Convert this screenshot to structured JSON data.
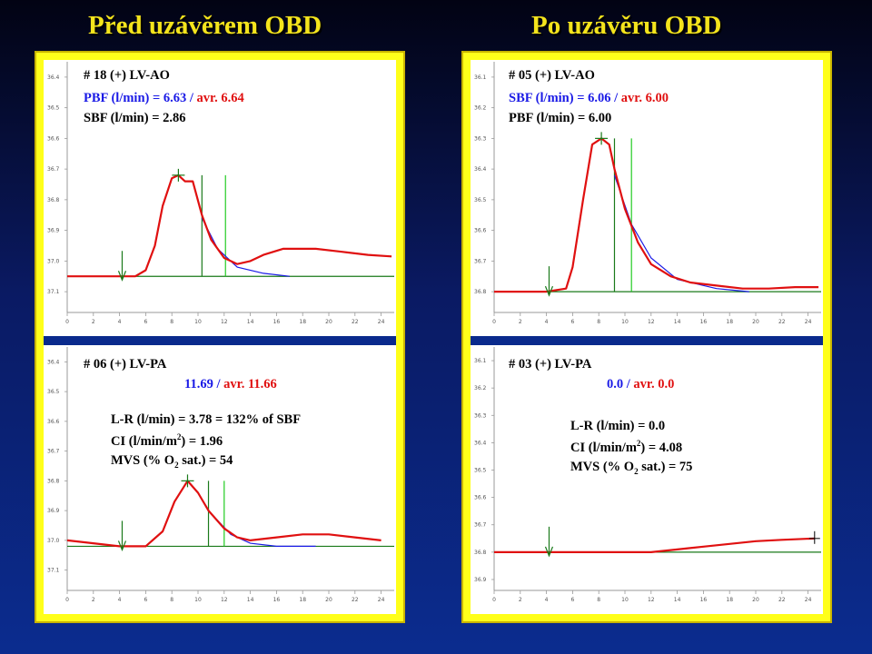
{
  "titles": {
    "left": "Před uzávěrem OBD",
    "right": "Po uzávěru OBD"
  },
  "colors": {
    "background": "#0b2c8f",
    "frame": "#ffff1a",
    "curve": "#e01010",
    "fit": "#1a1ae6",
    "baseline": "#1a7a1a",
    "marker": "#22cc22"
  },
  "panels": {
    "tl": {
      "header": "# 18  (+)  LV-AO",
      "line2_label": "PBF (l/min)   =  6.63 / ",
      "line2_avr": "avr. 6.64",
      "line3": "SBF (l/min)  =  2.86"
    },
    "bl": {
      "header": "# 06  (+)  LV-PA",
      "line2_value": "11.69 / ",
      "line2_avr": "avr. 11.66",
      "lr": "L-R (l/min)  = 3.78 = 132% of  SBF",
      "ci_a": "CI (l/min/m",
      "ci_sup": "2",
      "ci_b": ")  = 1.96",
      "mvs_a": "MVS (% O",
      "mvs_sub": "2",
      "mvs_b": " sat.)  = 54"
    },
    "tr": {
      "header": "# 05  (+)  LV-AO",
      "line2_label": "SBF (l/min)   =  6.06 / ",
      "line2_avr": "avr. 6.00",
      "line3": "PBF (l/min)    =  6.00"
    },
    "br": {
      "header": "# 03  (+)  LV-PA",
      "line2_value": "0.0 / ",
      "line2_avr": "avr. 0.0",
      "lr": "L-R (l/min)  = 0.0",
      "ci_a": "CI (l/min/m",
      "ci_sup": "2",
      "ci_b": ")  = 4.08",
      "mvs_a": "MVS (% O",
      "mvs_sub": "2",
      "mvs_b": " sat.)  = 75"
    }
  },
  "chart_data": [
    {
      "id": "tl",
      "type": "line",
      "x_ticks": [
        0,
        2,
        4,
        6,
        8,
        10,
        12,
        14,
        16,
        18,
        20,
        22,
        24
      ],
      "y_ticks": [
        "36.4",
        "36.5",
        "36.6",
        "36.7",
        "36.8",
        "36.9",
        "37.0",
        "37.1"
      ],
      "xlim": [
        0,
        25
      ],
      "ylim": [
        36.35,
        37.15
      ],
      "injection_x": 4.2,
      "peak": [
        8.5,
        36.72
      ],
      "markers_x": [
        10.3,
        12.1
      ],
      "baseline_y": 37.05,
      "series": [
        {
          "values": [
            [
              0,
              37.05
            ],
            [
              3,
              37.05
            ],
            [
              5.2,
              37.05
            ],
            [
              6,
              37.03
            ],
            [
              6.7,
              36.95
            ],
            [
              7.3,
              36.82
            ],
            [
              8,
              36.73
            ],
            [
              8.5,
              36.72
            ],
            [
              9,
              36.74
            ],
            [
              9.6,
              36.74
            ],
            [
              10.3,
              36.85
            ],
            [
              11,
              36.93
            ],
            [
              12,
              36.99
            ],
            [
              13,
              37.01
            ],
            [
              14,
              37.0
            ],
            [
              15,
              36.98
            ],
            [
              16.5,
              36.96
            ],
            [
              18,
              36.96
            ],
            [
              19,
              36.96
            ],
            [
              21,
              36.97
            ],
            [
              23,
              36.98
            ],
            [
              24.8,
              36.985
            ]
          ]
        },
        {
          "values": [
            [
              10.3,
              36.86
            ],
            [
              11.5,
              36.96
            ],
            [
              13,
              37.02
            ],
            [
              15,
              37.04
            ],
            [
              17,
              37.05
            ]
          ]
        }
      ]
    },
    {
      "id": "bl",
      "type": "line",
      "x_ticks": [
        0,
        2,
        4,
        6,
        8,
        10,
        12,
        14,
        16,
        18,
        20,
        22,
        24
      ],
      "y_ticks": [
        "36.4",
        "36.5",
        "36.6",
        "36.7",
        "36.8",
        "36.9",
        "37.0",
        "37.1"
      ],
      "xlim": [
        0,
        25
      ],
      "ylim": [
        36.35,
        37.15
      ],
      "injection_x": 4.2,
      "peak": [
        9.2,
        36.8
      ],
      "markers_x": [
        10.8,
        12.0
      ],
      "baseline_y": 37.02,
      "series": [
        {
          "values": [
            [
              0,
              37.0
            ],
            [
              2,
              37.01
            ],
            [
              4,
              37.02
            ],
            [
              6,
              37.02
            ],
            [
              7.3,
              36.97
            ],
            [
              8.2,
              36.87
            ],
            [
              9.2,
              36.8
            ],
            [
              10,
              36.84
            ],
            [
              10.8,
              36.9
            ],
            [
              12,
              36.96
            ],
            [
              13,
              36.99
            ],
            [
              14,
              37.0
            ],
            [
              16,
              36.99
            ],
            [
              18,
              36.98
            ],
            [
              20,
              36.98
            ],
            [
              22,
              36.99
            ],
            [
              24,
              37.0
            ]
          ]
        },
        {
          "values": [
            [
              10.8,
              36.9
            ],
            [
              12.5,
              36.98
            ],
            [
              14,
              37.01
            ],
            [
              16,
              37.02
            ],
            [
              19,
              37.02
            ]
          ]
        }
      ]
    },
    {
      "id": "tr",
      "type": "line",
      "x_ticks": [
        0,
        2,
        4,
        6,
        8,
        10,
        12,
        14,
        16,
        18,
        20,
        22,
        24
      ],
      "y_ticks": [
        "36.1",
        "36.2",
        "36.3",
        "36.4",
        "36.5",
        "36.6",
        "36.7",
        "36.8"
      ],
      "xlim": [
        0,
        25
      ],
      "ylim": [
        36.05,
        36.85
      ],
      "injection_x": 4.2,
      "peak": [
        8.2,
        36.3
      ],
      "markers_x": [
        9.2,
        10.5
      ],
      "baseline_y": 36.8,
      "series": [
        {
          "values": [
            [
              0,
              36.8
            ],
            [
              4,
              36.8
            ],
            [
              5.5,
              36.79
            ],
            [
              6,
              36.72
            ],
            [
              6.8,
              36.5
            ],
            [
              7.5,
              36.32
            ],
            [
              8.2,
              36.3
            ],
            [
              8.8,
              36.32
            ],
            [
              9.2,
              36.4
            ],
            [
              10,
              36.53
            ],
            [
              11,
              36.64
            ],
            [
              12,
              36.71
            ],
            [
              13.5,
              36.75
            ],
            [
              15,
              36.77
            ],
            [
              17,
              36.78
            ],
            [
              19,
              36.79
            ],
            [
              21,
              36.79
            ],
            [
              23,
              36.785
            ],
            [
              24.8,
              36.785
            ]
          ]
        },
        {
          "values": [
            [
              9.2,
              36.42
            ],
            [
              10.5,
              36.58
            ],
            [
              12,
              36.69
            ],
            [
              14,
              36.76
            ],
            [
              17,
              36.79
            ],
            [
              19.5,
              36.8
            ]
          ]
        }
      ]
    },
    {
      "id": "br",
      "type": "line",
      "x_ticks": [
        0,
        2,
        4,
        6,
        8,
        10,
        12,
        14,
        16,
        18,
        20,
        22,
        24
      ],
      "y_ticks": [
        "36.1",
        "36.2",
        "36.3",
        "36.4",
        "36.5",
        "36.6",
        "36.7",
        "36.8",
        "36.9"
      ],
      "xlim": [
        0,
        25
      ],
      "ylim": [
        36.05,
        36.92
      ],
      "injection_x": 4.2,
      "peak": null,
      "markers_x": [],
      "end_marker": [
        24.5,
        36.75
      ],
      "baseline_y": 36.8,
      "series": [
        {
          "values": [
            [
              0,
              36.8
            ],
            [
              4,
              36.8
            ],
            [
              8,
              36.8
            ],
            [
              12,
              36.8
            ],
            [
              14,
              36.79
            ],
            [
              16,
              36.78
            ],
            [
              18,
              36.77
            ],
            [
              20,
              36.76
            ],
            [
              22,
              36.755
            ],
            [
              24.5,
              36.75
            ]
          ]
        }
      ]
    }
  ]
}
